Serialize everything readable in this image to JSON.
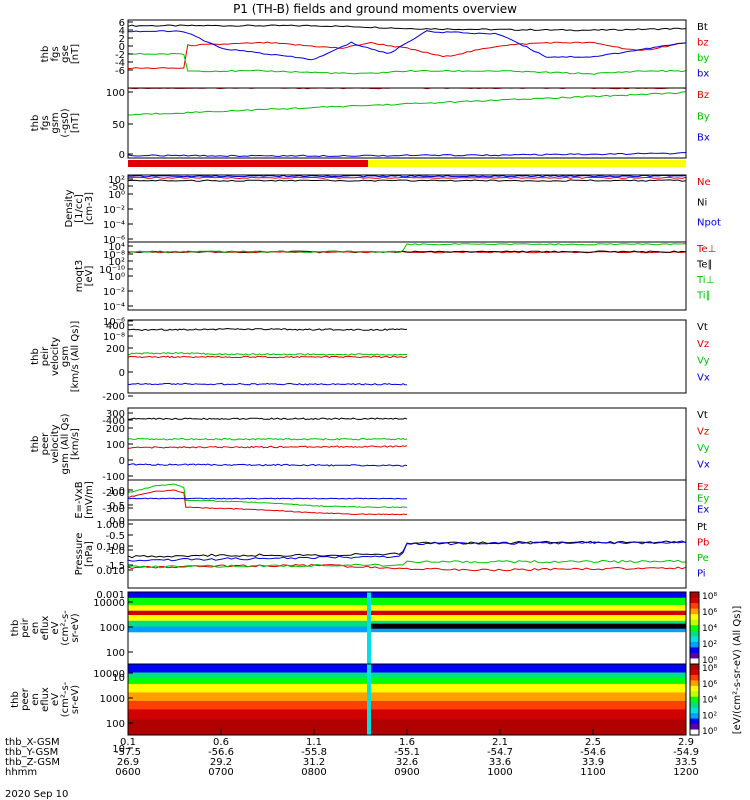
{
  "title": "P1 (TH-B) fields and ground moments overview",
  "date_label": "2020 Sep 10",
  "x_axis": {
    "tick_rows": [
      {
        "label": "thb_X-GSM",
        "values": [
          "0.1",
          "0.6",
          "1.1",
          "1.6",
          "2.1",
          "2.5",
          "2.9"
        ]
      },
      {
        "label": "thb_Y-GSM",
        "values": [
          "-57.5",
          "-56.6",
          "-55.8",
          "-55.1",
          "-54.7",
          "-54.6",
          "-54.9"
        ]
      },
      {
        "label": "thb_Z-GSM",
        "values": [
          "26.9",
          "29.2",
          "31.2",
          "32.6",
          "33.6",
          "33.9",
          "33.5"
        ]
      },
      {
        "label": "hhmm",
        "values": [
          "0600",
          "0700",
          "0800",
          "0900",
          "1000",
          "1100",
          "1200"
        ]
      }
    ],
    "time_range_hours": [
      6,
      12
    ]
  },
  "panels": [
    {
      "id": "fgs-gse",
      "ylabel": [
        "thb",
        "fgs",
        "gse",
        "[nT]"
      ],
      "ticks": [
        "6",
        "4",
        "2",
        "0",
        "-2",
        "-4",
        "-6"
      ],
      "legend": [
        {
          "label": "Bt",
          "color": "#000000"
        },
        {
          "label": "bz",
          "color": "#e00000"
        },
        {
          "label": "by",
          "color": "#00c000"
        },
        {
          "label": "bx",
          "color": "#0000e0"
        }
      ]
    },
    {
      "id": "fgs-gsm",
      "ylabel": [
        "thb",
        "fgs",
        "gsm",
        "(-gs0)",
        "[nT]"
      ],
      "ticks": [
        "100",
        "50",
        "0",
        "-50"
      ],
      "legend": [
        {
          "label": "Bz",
          "color": "#e00000"
        },
        {
          "label": "By",
          "color": "#00c000"
        },
        {
          "label": "Bx",
          "color": "#0000e0"
        }
      ]
    },
    {
      "id": "density",
      "ylabel": [
        "Density",
        "[1/cc]",
        "[cm-3]"
      ],
      "ticks": [
        "10²",
        "10⁰",
        "10⁻²",
        "10⁻⁴",
        "10⁻⁶",
        "10⁻⁸",
        "10⁻¹⁰"
      ],
      "legend": [
        {
          "label": "Ne",
          "color": "#e00000"
        },
        {
          "label": "Ni",
          "color": "#000000"
        },
        {
          "label": "Npot",
          "color": "#0000e0"
        }
      ]
    },
    {
      "id": "temperature",
      "ylabel": [
        "moqt3",
        "[eV]"
      ],
      "ticks": [
        "10⁴",
        "10²",
        "10⁰",
        "10⁻²",
        "10⁻⁴",
        "10⁻⁶",
        "10⁻⁸"
      ],
      "legend": [
        {
          "label": "Te⊥",
          "color": "#e00000"
        },
        {
          "label": "Te∥",
          "color": "#000000"
        },
        {
          "label": "Ti⊥",
          "color": "#00c000"
        },
        {
          "label": "Ti∥",
          "color": "#00c000"
        }
      ]
    },
    {
      "id": "peir-vel",
      "ylabel": [
        "thb",
        "peir",
        "velocity",
        "gsm",
        "[km/s (All Qs)]"
      ],
      "ticks": [
        "400",
        "200",
        "0",
        "-200",
        "-400"
      ],
      "legend": [
        {
          "label": "Vt",
          "color": "#000000"
        },
        {
          "label": "Vz",
          "color": "#e00000"
        },
        {
          "label": "Vy",
          "color": "#00c000"
        },
        {
          "label": "Vx",
          "color": "#0000e0"
        }
      ]
    },
    {
      "id": "peer-vel",
      "ylabel": [
        "thb",
        "peer",
        "velocity",
        "gsm (All Qs)",
        "[km/s]"
      ],
      "ticks": [
        "300",
        "200",
        "100",
        "0",
        "-100",
        "-200",
        "-300"
      ],
      "legend": [
        {
          "label": "Vt",
          "color": "#000000"
        },
        {
          "label": "Vz",
          "color": "#e00000"
        },
        {
          "label": "Vy",
          "color": "#00c000"
        },
        {
          "label": "Vx",
          "color": "#0000e0"
        }
      ]
    },
    {
      "id": "efield",
      "ylabel": [
        "E=-VxB",
        "[mV/m]"
      ],
      "ticks": [
        "1.0",
        "0.5",
        "0.0",
        "-0.5",
        "-1.0",
        "-1.5"
      ],
      "legend": [
        {
          "label": "Ez",
          "color": "#e00000"
        },
        {
          "label": "Ey",
          "color": "#00c000"
        },
        {
          "label": "Ex",
          "color": "#0000e0"
        }
      ]
    },
    {
      "id": "pressure",
      "ylabel": [
        "Pressure",
        "[nPa]"
      ],
      "ticks": [
        "1.000",
        "0.100",
        "0.010",
        "0.001"
      ],
      "legend": [
        {
          "label": "Pt",
          "color": "#000000"
        },
        {
          "label": "Pb",
          "color": "#e00000"
        },
        {
          "label": "Pe",
          "color": "#00c000"
        },
        {
          "label": "Pi",
          "color": "#0000e0"
        }
      ]
    },
    {
      "id": "peir-spec",
      "ylabel": [
        "thb",
        "peir",
        "en",
        "eflux",
        "eV",
        "(cm²-s-",
        "sr-eV)"
      ],
      "ticks": [
        "10000",
        "1000",
        "100",
        "10"
      ]
    },
    {
      "id": "peer-spec",
      "ylabel": [
        "thb",
        "peer",
        "en",
        "eflux",
        "eV",
        "(cm²-s-",
        "sr-eV)"
      ],
      "ticks": [
        "10000",
        "1000",
        "100",
        "10"
      ]
    }
  ],
  "colorbar": {
    "ticks": [
      "10⁸",
      "10⁶",
      "10⁴",
      "10²",
      "10⁰"
    ],
    "label": "[eV/(cm²-s-sr-eV) (All Qs)]",
    "colors": [
      "#ffffff",
      "#5a00a0",
      "#0000ff",
      "#00a0ff",
      "#00e0e0",
      "#00e080",
      "#00ff00",
      "#c0ff00",
      "#ffff00",
      "#ffa000",
      "#ff4000",
      "#d00000",
      "#b00000"
    ]
  },
  "chart_data": [
    {
      "type": "line",
      "name": "fgs-gse",
      "x_range": [
        6,
        12
      ],
      "ylim": [
        -6,
        6
      ],
      "series": [
        {
          "name": "Bt",
          "color": "#000000",
          "x": [
            6,
            7,
            8,
            8.5,
            9,
            10,
            11,
            12
          ],
          "y": [
            5,
            5,
            5,
            4.8,
            4.5,
            4.3,
            4.2,
            4.5
          ]
        },
        {
          "name": "bz",
          "color": "#e00000",
          "x": [
            6,
            6.6,
            6.61,
            7.5,
            8.3,
            8.6,
            9,
            9.4,
            10,
            10.5,
            11,
            11.5,
            12
          ],
          "y": [
            -2.5,
            -2.5,
            1.5,
            2,
            1,
            2,
            1,
            -0.5,
            1.5,
            2,
            2,
            0.5,
            2
          ]
        },
        {
          "name": "by",
          "color": "#00c000",
          "x": [
            6,
            6.6,
            6.61,
            7.5,
            8.5,
            9,
            10,
            11,
            11.5,
            12
          ],
          "y": [
            0,
            0,
            -3,
            -3,
            -3.5,
            -3,
            -3,
            -3.5,
            -3,
            -3
          ]
        },
        {
          "name": "bx",
          "color": "#0000e0",
          "x": [
            6,
            6.6,
            7,
            7.5,
            8,
            8.4,
            8.8,
            9.2,
            10,
            10.5,
            11,
            12
          ],
          "y": [
            4,
            4,
            1,
            0,
            -1,
            2,
            0,
            4,
            3.5,
            -0.5,
            -0.5,
            2
          ]
        }
      ]
    },
    {
      "type": "line",
      "name": "fgs-gsm",
      "x_range": [
        6,
        12
      ],
      "ylim": [
        -85,
        105
      ],
      "series": [
        {
          "name": "Bz",
          "color": "#e00000",
          "x": [
            6,
            12
          ],
          "y": [
            105,
            105
          ]
        },
        {
          "name": "By",
          "color": "#00c000",
          "x": [
            6,
            7,
            8,
            9,
            10,
            11,
            12
          ],
          "y": [
            32,
            42,
            52,
            62,
            72,
            82,
            93
          ]
        },
        {
          "name": "Bx",
          "color": "#0000e0",
          "x": [
            6,
            7,
            8,
            9,
            10,
            11,
            12
          ],
          "y": [
            -78,
            -79,
            -79,
            -78,
            -77,
            -75,
            -72
          ]
        }
      ]
    },
    {
      "type": "line",
      "name": "density",
      "x_range": [
        6,
        12
      ],
      "ylim": [
        -10,
        2
      ],
      "series": [
        {
          "name": "Ne",
          "color": "#e00000",
          "x": [
            6,
            12
          ],
          "y": [
            1.5,
            1.5
          ]
        },
        {
          "name": "Ni",
          "color": "#000000",
          "x": [
            6,
            12
          ],
          "y": [
            1.0,
            1.0
          ]
        },
        {
          "name": "Npot",
          "color": "#0000e0",
          "x": [
            6,
            12
          ],
          "y": [
            1.8,
            1.8
          ]
        }
      ]
    },
    {
      "type": "line",
      "name": "temperature",
      "x_range": [
        6,
        12
      ],
      "ylim": [
        -8,
        4
      ],
      "series": [
        {
          "name": "Te⊥",
          "color": "#e00000",
          "x": [
            6,
            12
          ],
          "y": [
            2.2,
            2.2
          ]
        },
        {
          "name": "Te∥",
          "color": "#000000",
          "x": [
            6,
            12
          ],
          "y": [
            2.3,
            2.3
          ]
        },
        {
          "name": "Ti⊥",
          "color": "#00c000",
          "x": [
            6,
            8.95,
            9,
            12
          ],
          "y": [
            2.3,
            2.3,
            3.6,
            3.6
          ]
        }
      ]
    },
    {
      "type": "line",
      "name": "peir-vel",
      "x_range": [
        6,
        12
      ],
      "ylim": [
        -400,
        400
      ],
      "series": [
        {
          "name": "Vt",
          "color": "#000000",
          "x": [
            6,
            7,
            8,
            9
          ],
          "y": [
            290,
            300,
            295,
            295
          ]
        },
        {
          "name": "Vz",
          "color": "#e00000",
          "x": [
            6,
            9
          ],
          "y": [
            -5,
            -5
          ]
        },
        {
          "name": "Vy",
          "color": "#00c000",
          "x": [
            6,
            6.5,
            7,
            9
          ],
          "y": [
            30,
            40,
            25,
            20
          ]
        },
        {
          "name": "Vx",
          "color": "#0000e0",
          "x": [
            6,
            9
          ],
          "y": [
            -300,
            -305
          ]
        }
      ]
    },
    {
      "type": "line",
      "name": "peer-vel",
      "x_range": [
        6,
        12
      ],
      "ylim": [
        -300,
        300
      ],
      "series": [
        {
          "name": "Vt",
          "color": "#000000",
          "x": [
            6,
            9
          ],
          "y": [
            210,
            210
          ]
        },
        {
          "name": "Vz",
          "color": "#e00000",
          "x": [
            6,
            9
          ],
          "y": [
            -30,
            -20
          ]
        },
        {
          "name": "Vy",
          "color": "#00c000",
          "x": [
            6,
            9
          ],
          "y": [
            40,
            40
          ]
        },
        {
          "name": "Vx",
          "color": "#0000e0",
          "x": [
            6,
            9
          ],
          "y": [
            -170,
            -180
          ]
        }
      ]
    },
    {
      "type": "line",
      "name": "efield",
      "x_range": [
        6,
        12
      ],
      "ylim": [
        -1.5,
        1.3
      ],
      "series": [
        {
          "name": "Ez",
          "color": "#e00000",
          "x": [
            6,
            6.3,
            6.5,
            6.6,
            6.61,
            7.5,
            8,
            8.5,
            9
          ],
          "y": [
            0.1,
            0.5,
            0.6,
            0.4,
            -0.6,
            -0.8,
            -1.0,
            -1.1,
            -1.1
          ]
        },
        {
          "name": "Ey",
          "color": "#00c000",
          "x": [
            6,
            6.3,
            6.5,
            6.6,
            6.61,
            7.5,
            8,
            8.5,
            9
          ],
          "y": [
            0.4,
            0.9,
            1.0,
            0.8,
            -0.1,
            -0.3,
            -0.5,
            -0.6,
            -0.6
          ]
        },
        {
          "name": "Ex",
          "color": "#0000e0",
          "x": [
            6,
            9
          ],
          "y": [
            0.0,
            0.0
          ]
        }
      ]
    },
    {
      "type": "line",
      "name": "pressure",
      "x_range": [
        6,
        12
      ],
      "ylim_log10": [
        -3,
        0.2
      ],
      "series": [
        {
          "name": "Pt",
          "color": "#000000",
          "x": [
            6,
            7,
            8,
            8.95,
            9,
            12
          ],
          "y": [
            0.03,
            0.035,
            0.035,
            0.04,
            0.13,
            0.15
          ]
        },
        {
          "name": "Pb",
          "color": "#e00000",
          "x": [
            6,
            7,
            8,
            9,
            10,
            11,
            12
          ],
          "y": [
            0.009,
            0.011,
            0.012,
            0.008,
            0.007,
            0.008,
            0.009
          ]
        },
        {
          "name": "Pe",
          "color": "#00c000",
          "x": [
            6,
            8.95,
            9,
            12
          ],
          "y": [
            0.01,
            0.012,
            0.017,
            0.018
          ]
        },
        {
          "name": "Pi",
          "color": "#0000e0",
          "x": [
            6,
            8.95,
            9,
            12
          ],
          "y": [
            0.02,
            0.03,
            0.12,
            0.14
          ]
        }
      ]
    },
    {
      "type": "heatmap",
      "name": "peir-spec",
      "x_range": [
        6,
        12
      ],
      "ylim": [
        5,
        30000
      ]
    },
    {
      "type": "heatmap",
      "name": "peer-spec",
      "x_range": [
        6,
        12
      ],
      "ylim": [
        5,
        30000
      ]
    }
  ]
}
